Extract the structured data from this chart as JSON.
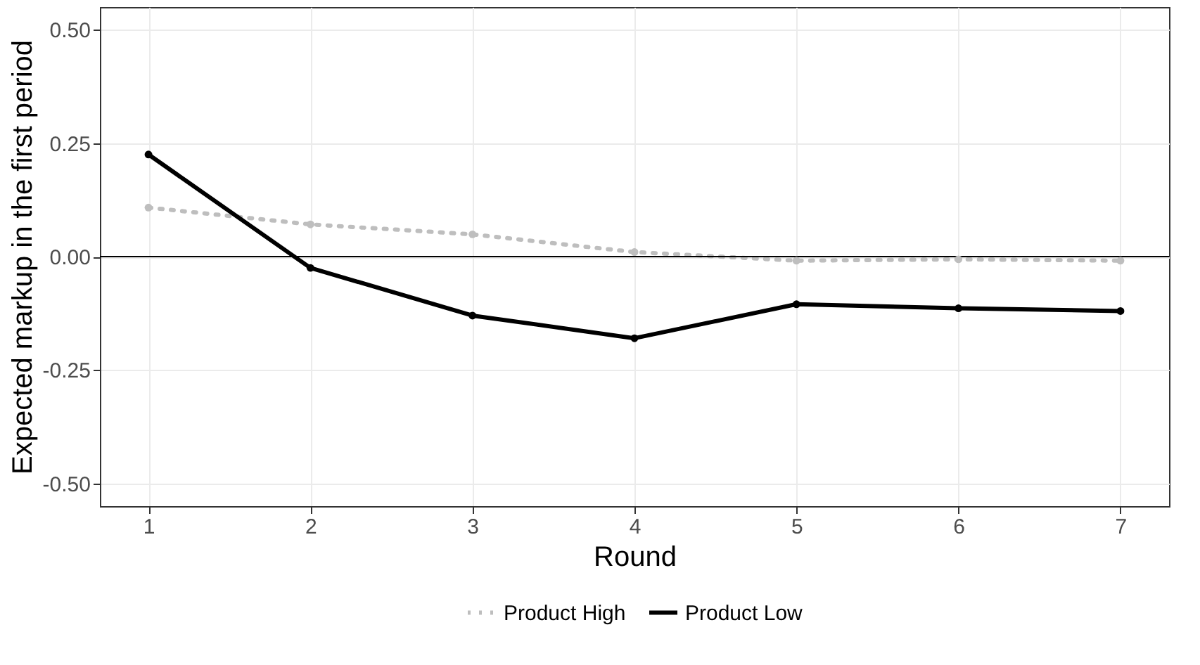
{
  "chart_data": {
    "type": "line",
    "xlabel": "Round",
    "ylabel": "Expected markup in the first period",
    "x": [
      1,
      2,
      3,
      4,
      5,
      6,
      7
    ],
    "series": [
      {
        "name": "Product High",
        "color": "#bebebe",
        "line_style": "dotted",
        "values": [
          0.108,
          0.071,
          0.049,
          0.01,
          -0.009,
          -0.006,
          -0.009
        ]
      },
      {
        "name": "Product Low",
        "color": "#000000",
        "line_style": "solid",
        "values": [
          0.225,
          -0.025,
          -0.13,
          -0.18,
          -0.105,
          -0.114,
          -0.12
        ]
      }
    ],
    "xlim": [
      0.7,
      7.3
    ],
    "xticks": [
      1,
      2,
      3,
      4,
      5,
      6,
      7
    ],
    "ylim": [
      -0.55,
      0.55
    ],
    "yticks": [
      {
        "value": -0.5,
        "label": "-0.50"
      },
      {
        "value": -0.25,
        "label": "-0.25"
      },
      {
        "value": 0,
        "label": "0.00"
      },
      {
        "value": 0.25,
        "label": "0.25"
      },
      {
        "value": 0.5,
        "label": "0.50"
      }
    ],
    "ref_lines": [
      {
        "axis": "y",
        "value": 0,
        "color": "#000000"
      }
    ],
    "grid": true,
    "legend": "bottom",
    "marker": "circle"
  }
}
